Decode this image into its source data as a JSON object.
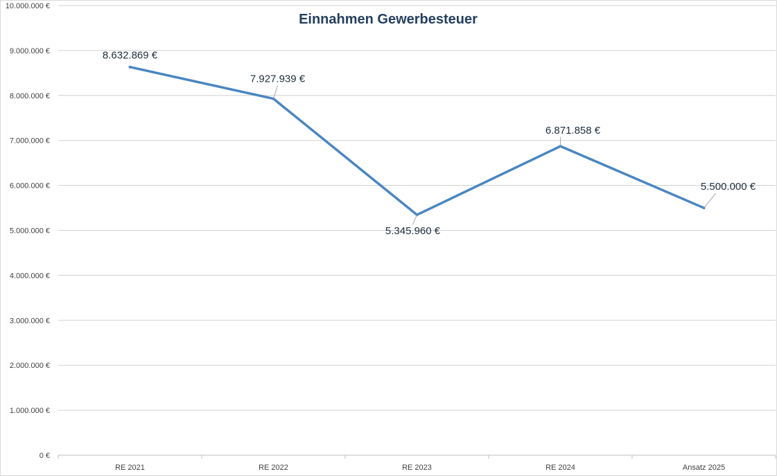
{
  "chart_data": {
    "type": "line",
    "title": "Einnahmen Gewerbesteuer",
    "categories": [
      "RE 2021",
      "RE 2022",
      "RE 2023",
      "RE 2024",
      "Ansatz 2025"
    ],
    "series": [
      {
        "name": "Einnahmen Gewerbesteuer",
        "values": [
          8632869,
          7927939,
          5345960,
          6871858,
          5500000
        ],
        "labels": [
          "8.632.869 €",
          "7.927.939 €",
          "5.345.960 €",
          "6.871.858 €",
          "5.500.000 €"
        ]
      }
    ],
    "ylim": [
      0,
      10000000
    ],
    "yticks": [
      0,
      1000000,
      2000000,
      3000000,
      4000000,
      5000000,
      6000000,
      7000000,
      8000000,
      9000000,
      10000000
    ],
    "ytick_labels": [
      "0 €",
      "1.000.000 €",
      "2.000.000 €",
      "3.000.000 €",
      "4.000.000 €",
      "5.000.000 €",
      "6.000.000 €",
      "7.000.000 €",
      "8.000.000 €",
      "9.000.000 €",
      "10.000.000 €"
    ],
    "xlabel": "",
    "ylabel": "",
    "grid": true,
    "line_color": "#4a86c1"
  }
}
